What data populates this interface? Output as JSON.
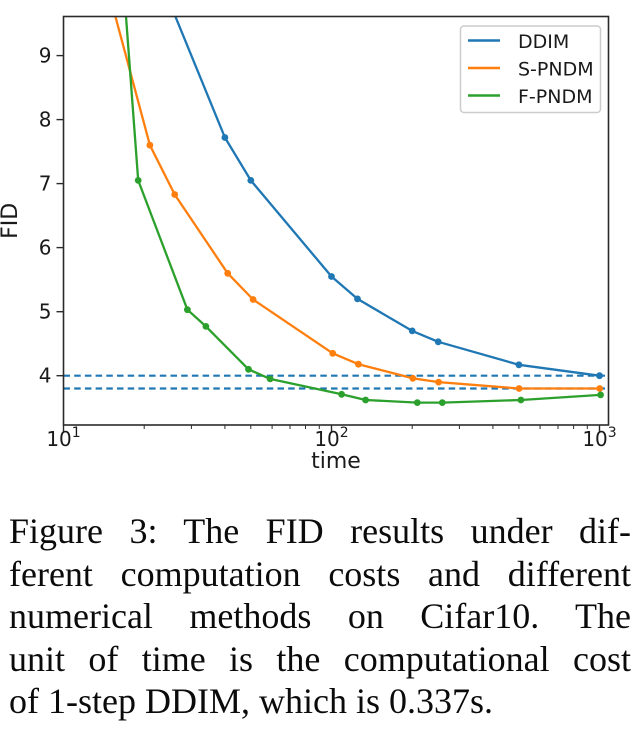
{
  "figure": {
    "caption_lines": [
      "Figure 3: The FID results under dif-",
      "ferent computation costs and different",
      "numerical methods on Cifar10. The",
      "unit of time is the computational cost",
      "of 1-step DDIM, which is 0.337s."
    ]
  },
  "chart_data": {
    "type": "line",
    "title": "",
    "xlabel": "time",
    "ylabel": "FID",
    "x_scale": "log",
    "xlim": [
      10,
      1080
    ],
    "ylim": [
      3.23,
      9.61
    ],
    "grid": false,
    "legend_position": "upper right",
    "x_major_ticks": [
      {
        "value": 10,
        "label_base": "10",
        "label_exp": "1"
      },
      {
        "value": 100,
        "label_base": "10",
        "label_exp": "2"
      },
      {
        "value": 1000,
        "label_base": "10",
        "label_exp": "3"
      }
    ],
    "y_ticks": [
      4,
      5,
      6,
      7,
      8,
      9
    ],
    "hlines": [
      {
        "y": 4.0,
        "style": "dashed",
        "color": "#1f77b4"
      },
      {
        "y": 3.8,
        "style": "dashed",
        "color": "#1f77b4"
      }
    ],
    "series": [
      {
        "name": "DDIM",
        "color": "#1f77b4",
        "marker": "circle",
        "entry_point": [
          20,
          10.8
        ],
        "points": [
          [
            40,
            7.72
          ],
          [
            50,
            7.05
          ],
          [
            100,
            5.55
          ],
          [
            125,
            5.2
          ],
          [
            200,
            4.7
          ],
          [
            250,
            4.53
          ],
          [
            500,
            4.17
          ],
          [
            1000,
            4.0
          ]
        ]
      },
      {
        "name": "S-PNDM",
        "color": "#ff7f0e",
        "marker": "circle",
        "entry_point": [
          12,
          11.4
        ],
        "points": [
          [
            21,
            7.6
          ],
          [
            26,
            6.83
          ],
          [
            41,
            5.6
          ],
          [
            51,
            5.19
          ],
          [
            101,
            4.35
          ],
          [
            126,
            4.18
          ],
          [
            201,
            3.96
          ],
          [
            251,
            3.9
          ],
          [
            501,
            3.8
          ],
          [
            1001,
            3.8
          ]
        ]
      },
      {
        "name": "F-PNDM",
        "color": "#2ca02c",
        "marker": "circle",
        "entry_point": [
          14,
          14.5
        ],
        "points": [
          [
            19,
            7.05
          ],
          [
            29,
            5.03
          ],
          [
            34,
            4.77
          ],
          [
            49,
            4.1
          ],
          [
            59,
            3.95
          ],
          [
            109,
            3.71
          ],
          [
            134,
            3.62
          ],
          [
            209,
            3.58
          ],
          [
            259,
            3.58
          ],
          [
            509,
            3.62
          ],
          [
            1009,
            3.7
          ]
        ]
      }
    ]
  }
}
